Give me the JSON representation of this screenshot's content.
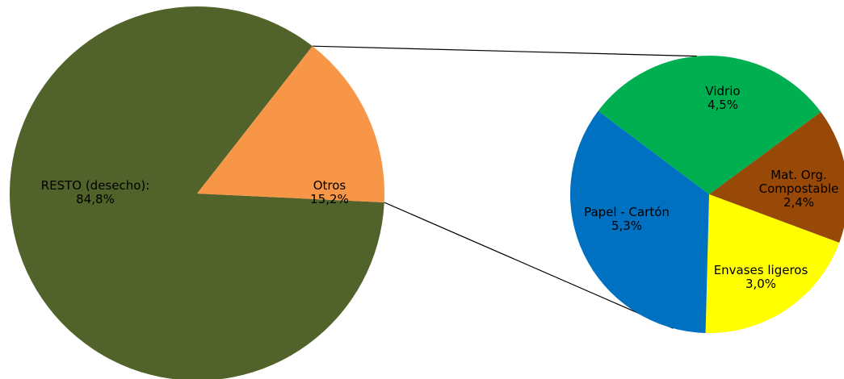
{
  "chart_data": [
    {
      "type": "pie",
      "categories": [
        "RESTO (desecho):",
        "Otros"
      ],
      "values": [
        84.8,
        15.2
      ],
      "value_labels": [
        "84,8%",
        "15,2%"
      ],
      "colors": [
        "#51622a",
        "#f79646"
      ]
    },
    {
      "type": "pie",
      "categories": [
        "Vidrio",
        "Mat. Org.\nCompostable",
        "Envases ligeros",
        "Papel - Cartón"
      ],
      "values": [
        4.5,
        2.4,
        3.0,
        5.3
      ],
      "value_labels": [
        "4,5%",
        "2,4%",
        "3,0%",
        "5,3%"
      ],
      "colors": [
        "#00b050",
        "#984807",
        "#ffff00",
        "#0070c0"
      ]
    }
  ]
}
